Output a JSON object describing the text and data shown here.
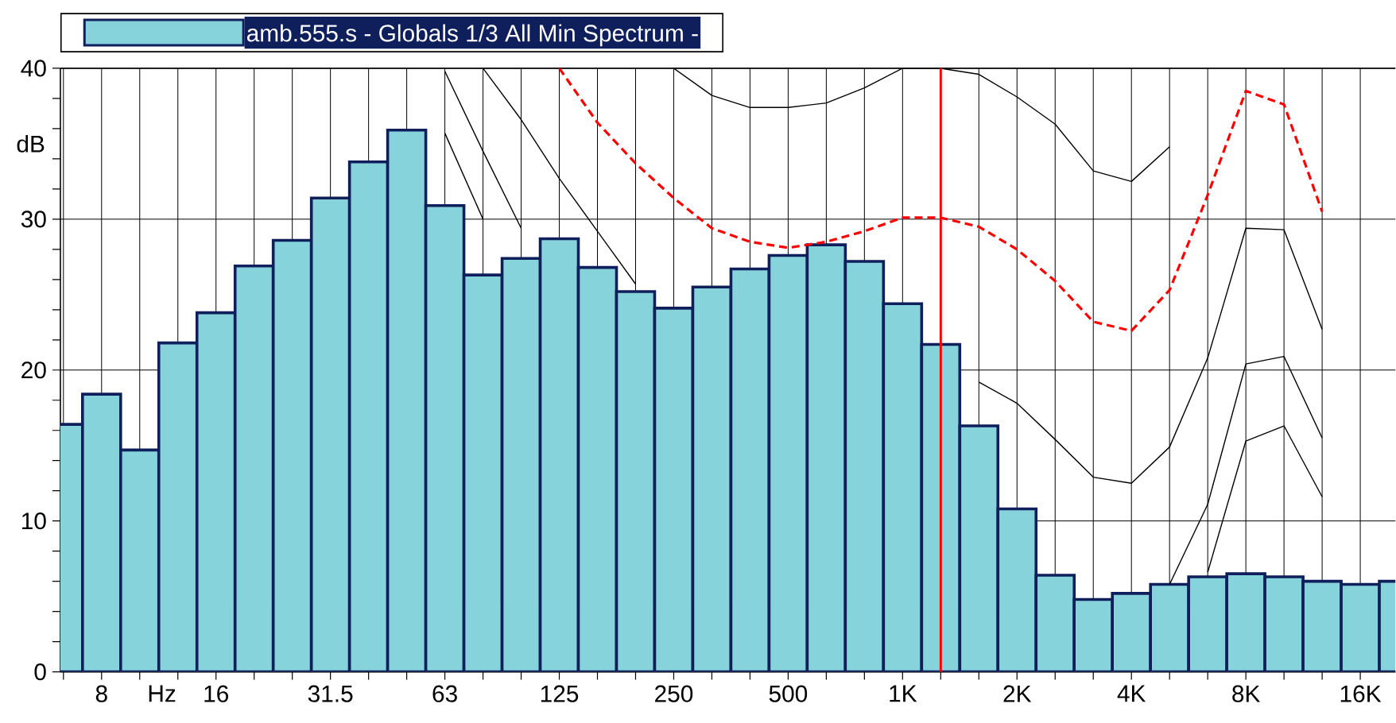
{
  "chart_data": {
    "type": "bar",
    "grid": true,
    "legend": "top",
    "xlabel": "Hz",
    "ylabel": "dB",
    "categories": [
      null,
      "8",
      null,
      null,
      "16",
      null,
      null,
      "31.5",
      null,
      null,
      "63",
      null,
      null,
      "125",
      null,
      null,
      "250",
      null,
      null,
      "500",
      null,
      null,
      "1K",
      null,
      null,
      "2K",
      null,
      null,
      "4K",
      null,
      null,
      "8K",
      null,
      null,
      "16K",
      null
    ],
    "ylim": [
      0,
      40
    ],
    "yticks": [
      0,
      {
        "value": 2,
        "label": null
      },
      {
        "value": 4,
        "label": null
      },
      {
        "value": 6,
        "label": null
      },
      {
        "value": 8,
        "label": null
      },
      10,
      {
        "value": 12,
        "label": null
      },
      {
        "value": 14,
        "label": null
      },
      {
        "value": 16,
        "label": null
      },
      {
        "value": 18,
        "label": null
      },
      20,
      {
        "value": 22,
        "label": null
      },
      {
        "value": 24,
        "label": null
      },
      {
        "value": 26,
        "label": null
      },
      {
        "value": 28,
        "label": null
      },
      30,
      {
        "value": 32,
        "label": null
      },
      {
        "value": 34,
        "label": null
      },
      {
        "value": 36,
        "label": null
      },
      {
        "value": 38,
        "label": null
      },
      40
    ],
    "series": [
      {
        "name": "amb.555.s - Globals 1/3 All Min Spectrum -",
        "color": "#87d3db",
        "values": [
          16.4,
          18.4,
          14.7,
          21.8,
          23.8,
          26.9,
          28.6,
          31.4,
          33.8,
          35.9,
          30.9,
          26.3,
          27.4,
          28.7,
          26.8,
          25.2,
          24.1,
          25.5,
          26.7,
          27.6,
          28.3,
          27.2,
          24.4,
          21.7,
          16.3,
          10.8,
          6.4,
          4.8,
          5.2,
          5.8,
          6.3,
          6.5,
          6.3,
          6.0,
          5.8,
          6.0
        ]
      },
      {
        "type": "line",
        "color": "#000000",
        "values": [
          null,
          null,
          null,
          null,
          null,
          null,
          null,
          null,
          null,
          null,
          35.7,
          30.0,
          null,
          null,
          null,
          null,
          null,
          null,
          null,
          null,
          null,
          null,
          null,
          null,
          null,
          null,
          null,
          null,
          null,
          null,
          null,
          null,
          null,
          null,
          null,
          null
        ]
      },
      {
        "type": "line",
        "color": "#000000",
        "values": [
          null,
          null,
          null,
          null,
          null,
          null,
          null,
          null,
          null,
          null,
          39.8,
          34.5,
          29.4,
          null,
          null,
          null,
          null,
          null,
          null,
          null,
          null,
          null,
          null,
          null,
          null,
          null,
          null,
          null,
          null,
          null,
          null,
          null,
          null,
          null,
          null,
          null
        ]
      },
      {
        "type": "line",
        "color": "#000000",
        "values": [
          null,
          null,
          null,
          null,
          null,
          null,
          null,
          null,
          null,
          null,
          null,
          40.0,
          36.6,
          32.7,
          29.2,
          25.7,
          null,
          null,
          null,
          null,
          null,
          null,
          null,
          null,
          null,
          null,
          null,
          null,
          null,
          null,
          null,
          null,
          null,
          null,
          null,
          null
        ]
      },
      {
        "type": "line",
        "color": "#000000",
        "values": [
          null,
          null,
          null,
          null,
          null,
          null,
          null,
          null,
          null,
          null,
          null,
          null,
          null,
          null,
          null,
          null,
          40.0,
          38.2,
          37.4,
          37.4,
          37.7,
          38.7,
          40.0,
          40.0,
          39.6,
          38.1,
          36.3,
          33.2,
          32.5,
          34.8,
          null,
          null,
          null,
          null,
          null,
          null
        ]
      },
      {
        "type": "line",
        "color": "#000000",
        "values": [
          null,
          null,
          null,
          null,
          null,
          null,
          null,
          null,
          null,
          null,
          null,
          null,
          null,
          null,
          null,
          null,
          null,
          null,
          null,
          null,
          null,
          null,
          null,
          null,
          19.2,
          17.8,
          15.4,
          12.9,
          12.5,
          14.9,
          20.8,
          29.4,
          29.3,
          22.7,
          null,
          null
        ]
      },
      {
        "type": "line",
        "color": "#000000",
        "values": [
          null,
          null,
          null,
          null,
          null,
          null,
          null,
          null,
          null,
          null,
          null,
          null,
          null,
          null,
          null,
          null,
          null,
          null,
          null,
          null,
          null,
          null,
          null,
          null,
          null,
          null,
          null,
          null,
          null,
          5.8,
          11.1,
          20.4,
          20.9,
          15.5,
          null,
          null
        ]
      },
      {
        "type": "line",
        "color": "#000000",
        "values": [
          null,
          null,
          null,
          null,
          null,
          null,
          null,
          null,
          null,
          null,
          null,
          null,
          null,
          null,
          null,
          null,
          null,
          null,
          null,
          null,
          null,
          null,
          null,
          null,
          null,
          null,
          null,
          null,
          null,
          null,
          6.6,
          15.3,
          16.3,
          11.6,
          null,
          null
        ]
      },
      {
        "type": "line",
        "color": "#ff0000",
        "line_style": "dashed",
        "values": [
          null,
          null,
          null,
          null,
          null,
          null,
          null,
          null,
          null,
          null,
          null,
          null,
          null,
          40.0,
          36.4,
          33.7,
          31.4,
          29.4,
          28.5,
          28.1,
          28.5,
          29.2,
          30.1,
          30.1,
          29.5,
          28.0,
          25.9,
          23.2,
          22.6,
          25.3,
          31.6,
          38.5,
          37.6,
          30.5,
          null,
          null
        ]
      }
    ]
  }
}
